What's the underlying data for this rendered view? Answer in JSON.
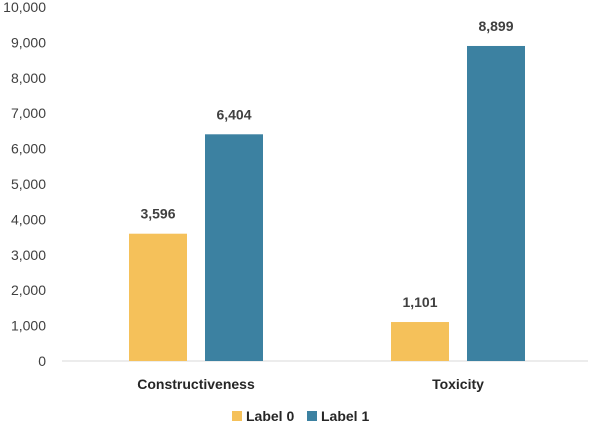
{
  "chart_data": {
    "type": "bar",
    "categories": [
      "Constructiveness",
      "Toxicity"
    ],
    "series": [
      {
        "name": "Label 0",
        "values": [
          3596,
          1101
        ],
        "color": "#F5C15A"
      },
      {
        "name": "Label 1",
        "values": [
          6404,
          8899
        ],
        "color": "#3C81A1"
      }
    ],
    "data_labels": [
      [
        "3,596",
        "1,101"
      ],
      [
        "6,404",
        "8,899"
      ]
    ],
    "ylim": [
      0,
      10000
    ],
    "yticks": [
      0,
      1000,
      2000,
      3000,
      4000,
      5000,
      6000,
      7000,
      8000,
      9000,
      10000
    ],
    "ytick_labels": [
      "0",
      "1,000",
      "2,000",
      "3,000",
      "4,000",
      "5,000",
      "6,000",
      "7,000",
      "8,000",
      "9,000",
      "10,000"
    ],
    "grid": false,
    "legend_position": "bottom",
    "axis_color": "#D9D9D9"
  }
}
